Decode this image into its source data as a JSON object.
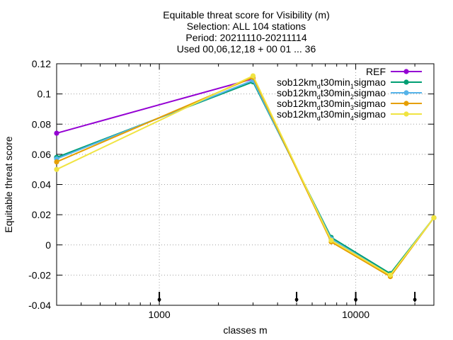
{
  "chart_data": {
    "type": "line",
    "title": [
      "Equitable threat score  for Visibility (m)",
      "Selection: ALL     104 stations",
      "Period: 20211110-20211114",
      "Used 00,06,12,18 + 00 01 ... 36"
    ],
    "xlabel": "classes m",
    "ylabel": "Equitable threat score",
    "x_scale": "log",
    "xlim": [
      300,
      25000
    ],
    "ylim": [
      -0.04,
      0.12
    ],
    "x_ticks": [
      1000,
      10000
    ],
    "x_tick_labels": [
      "1000",
      "10000"
    ],
    "y_ticks": [
      -0.04,
      -0.02,
      0,
      0.02,
      0.04,
      0.06,
      0.08,
      0.1,
      0.12
    ],
    "y_tick_labels": [
      "-0.04",
      "-0.02",
      "0",
      "0.02",
      "0.04",
      "0.06",
      "0.08",
      "0.1",
      "0.12"
    ],
    "grid": true,
    "legend_position": "top-right",
    "x": [
      300,
      3000,
      7500,
      15000,
      25000
    ],
    "series": [
      {
        "name": "REF",
        "name_parts": [
          [
            "REF",
            "n"
          ]
        ],
        "color": "#9400d3",
        "values": [
          0.074,
          0.11,
          null,
          null,
          null
        ]
      },
      {
        "name": "sob12kmdt30min1sigmao",
        "name_parts": [
          [
            "sob12km",
            "n"
          ],
          [
            "d",
            "sub"
          ],
          [
            "t30min",
            "n"
          ],
          [
            "1",
            "sub"
          ],
          [
            "sigmao",
            "n"
          ]
        ],
        "color": "#009e73",
        "values": [
          0.058,
          0.108,
          0.005,
          -0.019,
          0.018
        ]
      },
      {
        "name": "sob12kmdt30min2sigmao",
        "name_parts": [
          [
            "sob12km",
            "n"
          ],
          [
            "d",
            "sub"
          ],
          [
            "t30min",
            "n"
          ],
          [
            "2",
            "sub"
          ],
          [
            "sigmao",
            "n"
          ]
        ],
        "color": "#56b4e9",
        "values": [
          0.057,
          0.109,
          0.004,
          -0.02,
          0.018
        ]
      },
      {
        "name": "sob12kmdt30min3sigmao",
        "name_parts": [
          [
            "sob12km",
            "n"
          ],
          [
            "d",
            "sub"
          ],
          [
            "t30min",
            "n"
          ],
          [
            "3",
            "sub"
          ],
          [
            "sigmao",
            "n"
          ]
        ],
        "color": "#e69f00",
        "values": [
          0.055,
          0.111,
          0.002,
          -0.021,
          0.018
        ]
      },
      {
        "name": "sob12kmdt30min4sigmao",
        "name_parts": [
          [
            "sob12km",
            "n"
          ],
          [
            "d",
            "sub"
          ],
          [
            "t30min",
            "n"
          ],
          [
            "4",
            "sub"
          ],
          [
            "sigmao",
            "n"
          ]
        ],
        "color": "#f0e442",
        "values": [
          0.05,
          0.112,
          0.003,
          -0.02,
          0.018
        ]
      }
    ],
    "markers_x": [
      1000,
      5000,
      10000,
      20000
    ]
  }
}
